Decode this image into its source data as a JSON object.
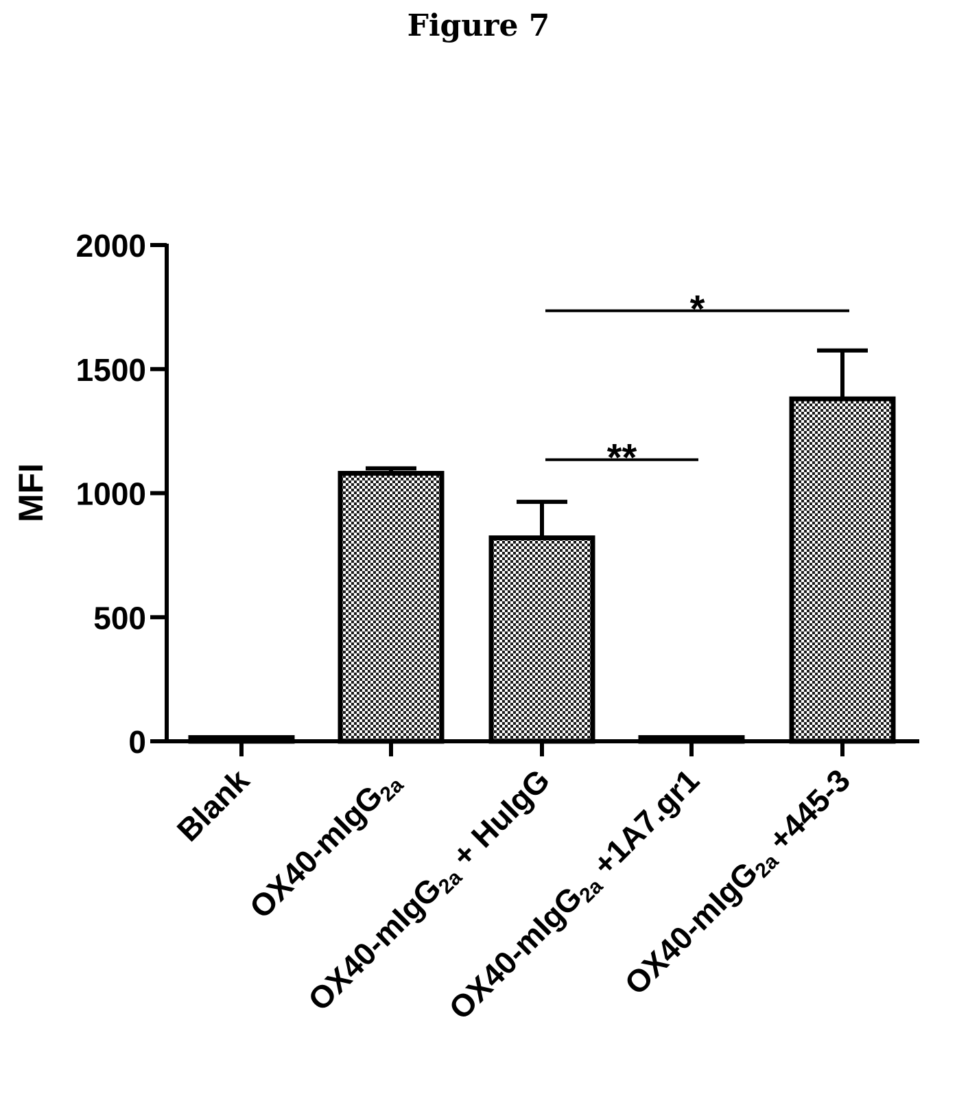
{
  "figure_title": "Figure 7",
  "chart_data": {
    "type": "bar",
    "title": "",
    "xlabel": "",
    "ylabel": "MFI",
    "ylim": [
      0,
      2000
    ],
    "yticks": [
      0,
      500,
      1000,
      1500,
      2000
    ],
    "y_tick_labels": [
      "0",
      "500",
      "1000",
      "1500",
      "2000"
    ],
    "grid": false,
    "bar_fill": "checkered",
    "categories": [
      {
        "id": "blank",
        "parts": [
          {
            "text": "Blank",
            "sub": false
          }
        ]
      },
      {
        "id": "ox40-migg2a",
        "parts": [
          {
            "text": "OX40-mIgG",
            "sub": false
          },
          {
            "text": "2a",
            "sub": true
          }
        ]
      },
      {
        "id": "ox40-migg2a-huigg",
        "parts": [
          {
            "text": "OX40-mIgG",
            "sub": false
          },
          {
            "text": "2a",
            "sub": true
          },
          {
            "text": " + HuIgG",
            "sub": false
          }
        ]
      },
      {
        "id": "ox40-migg2a-1a7gr1",
        "parts": [
          {
            "text": "OX40-mIgG",
            "sub": false
          },
          {
            "text": "2a",
            "sub": true
          },
          {
            "text": " +1A7.gr1",
            "sub": false
          }
        ]
      },
      {
        "id": "ox40-migg2a-445-3",
        "parts": [
          {
            "text": "OX40-mIgG",
            "sub": false
          },
          {
            "text": "2a",
            "sub": true
          },
          {
            "text": " +445-3",
            "sub": false
          }
        ]
      }
    ],
    "values": [
      15,
      1080,
      820,
      15,
      1380
    ],
    "error_upper": [
      null,
      1100,
      965,
      null,
      1575
    ],
    "significance": [
      {
        "from": 2,
        "to": 3,
        "label": "**",
        "y": 1135
      },
      {
        "from": 2,
        "to": 4,
        "label": "*",
        "y": 1735
      }
    ]
  }
}
